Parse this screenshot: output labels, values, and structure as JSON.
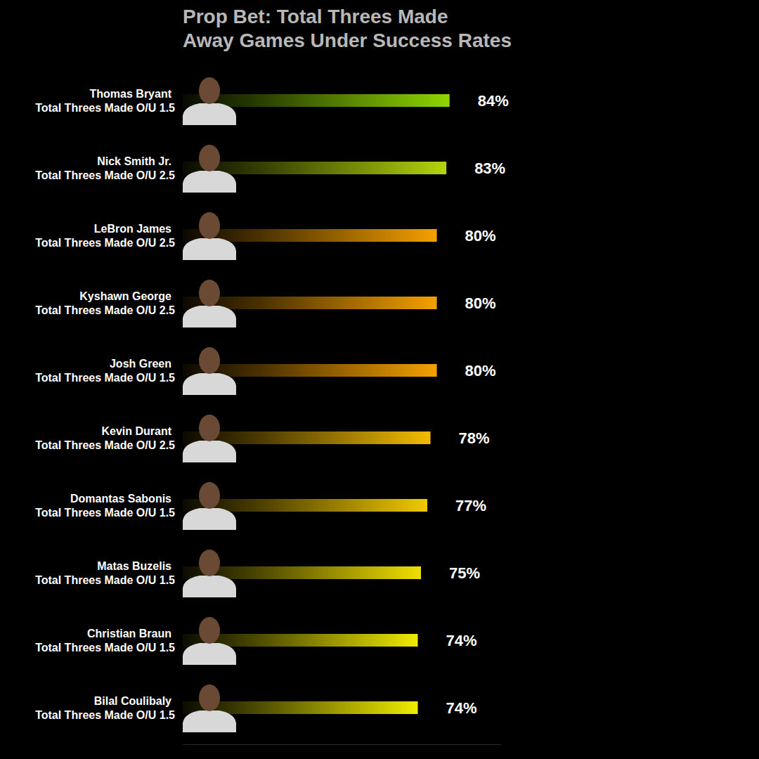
{
  "chart_data": {
    "type": "bar",
    "orientation": "horizontal",
    "title": [
      "Prop Bet: Total Threes Made",
      "Away Games Under Success Rates"
    ],
    "categories": [
      "Thomas Bryant",
      "Nick Smith Jr.",
      "LeBron James",
      "Kyshawn George",
      "Josh Green",
      "Kevin Durant",
      "Domantas Sabonis",
      "Matas Buzelis",
      "Christian Braun",
      "Bilal Coulibaly"
    ],
    "prop_lines": [
      "Total Threes Made O/U 1.5",
      "Total Threes Made O/U 2.5",
      "Total Threes Made O/U 2.5",
      "Total Threes Made O/U 2.5",
      "Total Threes Made O/U 1.5",
      "Total Threes Made O/U 2.5",
      "Total Threes Made O/U 1.5",
      "Total Threes Made O/U 1.5",
      "Total Threes Made O/U 1.5",
      "Total Threes Made O/U 1.5"
    ],
    "values": [
      84,
      83,
      80,
      80,
      80,
      78,
      77,
      75,
      74,
      74
    ],
    "value_labels": [
      "84%",
      "83%",
      "80%",
      "80%",
      "80%",
      "78%",
      "77%",
      "75%",
      "74%",
      "74%"
    ],
    "colors": [
      "#8ed600",
      "#b3d40c",
      "#f5a000",
      "#f5a000",
      "#f5a000",
      "#f3bc00",
      "#f1c900",
      "#f0df00",
      "#f0ea00",
      "#f0ec00"
    ],
    "xlim": [
      0,
      100
    ],
    "data_labels": true,
    "tick_labels": false,
    "grid": false
  }
}
